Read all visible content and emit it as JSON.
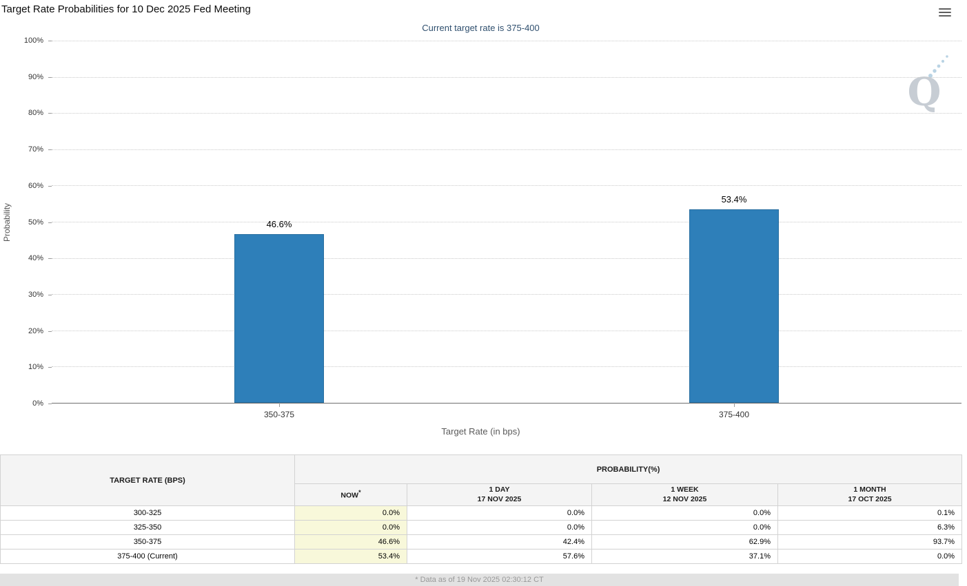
{
  "header": {
    "title": "Target Rate Probabilities for 10 Dec 2025 Fed Meeting",
    "menu_icon": "hamburger-icon"
  },
  "chart_data": {
    "type": "bar",
    "title": "Current target rate is 375-400",
    "categories": [
      "350-375",
      "375-400"
    ],
    "values": [
      46.6,
      53.4
    ],
    "value_labels": [
      "46.6%",
      "53.4%"
    ],
    "xlabel": "Target Rate (in bps)",
    "ylabel": "Probability",
    "ylim": [
      0,
      100
    ],
    "y_ticks": [
      "100%",
      "90%",
      "80%",
      "70%",
      "60%",
      "50%",
      "40%",
      "30%",
      "20%",
      "10%",
      "0%"
    ],
    "grid": "dotted-horizontal",
    "legend": "none",
    "bar_color": "#2e7fb9",
    "watermark_letter": "Q"
  },
  "table": {
    "rate_header": "TARGET RATE (BPS)",
    "prob_header": "PROBABILITY(%)",
    "columns": [
      {
        "label": "NOW",
        "note": "*"
      },
      {
        "label": "1 DAY",
        "date": "17 NOV 2025"
      },
      {
        "label": "1 WEEK",
        "date": "12 NOV 2025"
      },
      {
        "label": "1 MONTH",
        "date": "17 OCT 2025"
      }
    ],
    "rows": [
      [
        "300-325",
        "0.0%",
        "0.0%",
        "0.0%",
        "0.1%"
      ],
      [
        "325-350",
        "0.0%",
        "0.0%",
        "0.0%",
        "6.3%"
      ],
      [
        "350-375",
        "46.6%",
        "42.4%",
        "62.9%",
        "93.7%"
      ],
      [
        "375-400 (Current)",
        "53.4%",
        "57.6%",
        "37.1%",
        "0.0%"
      ]
    ],
    "now_column_bg": "#f8f8da"
  },
  "footer": {
    "note": "* Data as of 19 Nov 2025 02:30:12 CT"
  }
}
